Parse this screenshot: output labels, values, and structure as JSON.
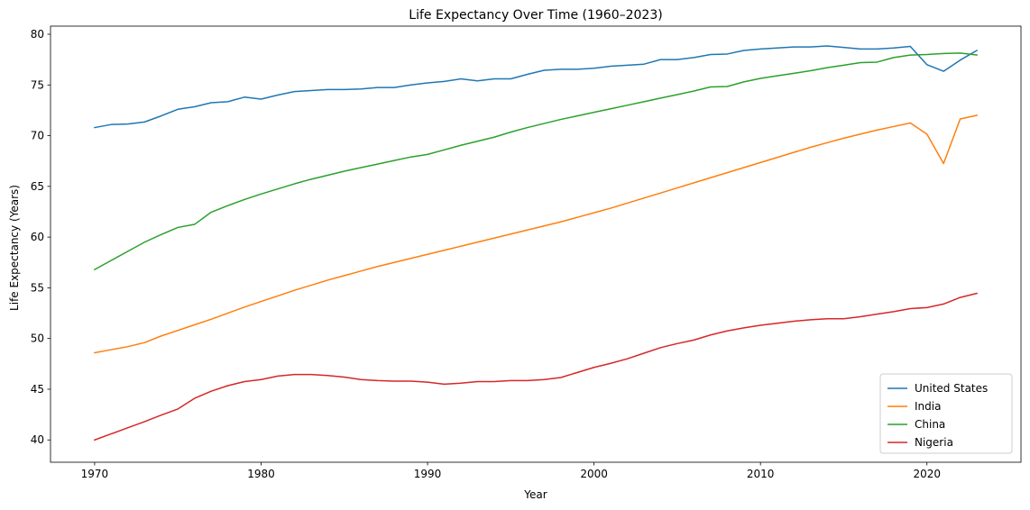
{
  "chart_data": {
    "type": "line",
    "title": "Life Expectancy Over Time (1960–2023)",
    "xlabel": "Year",
    "ylabel": "Life Expectancy (Years)",
    "xlim": [
      1967.35,
      2025.65
    ],
    "ylim": [
      37.8,
      80.8
    ],
    "xticks": [
      1970,
      1980,
      1990,
      2000,
      2010,
      2020
    ],
    "yticks": [
      40,
      45,
      50,
      55,
      60,
      65,
      70,
      75,
      80
    ],
    "grid": false,
    "legend_position": "lower-right",
    "x": [
      1970,
      1971,
      1972,
      1973,
      1974,
      1975,
      1976,
      1977,
      1978,
      1979,
      1980,
      1981,
      1982,
      1983,
      1984,
      1985,
      1986,
      1987,
      1988,
      1989,
      1990,
      1991,
      1992,
      1993,
      1994,
      1995,
      1996,
      1997,
      1998,
      1999,
      2000,
      2001,
      2002,
      2003,
      2004,
      2005,
      2006,
      2007,
      2008,
      2009,
      2010,
      2011,
      2012,
      2013,
      2014,
      2015,
      2016,
      2017,
      2018,
      2019,
      2020,
      2021,
      2022,
      2023
    ],
    "series": [
      {
        "name": "United States",
        "color": "#1f77b4",
        "values": [
          70.8,
          71.1,
          71.15,
          71.35,
          71.95,
          72.6,
          72.85,
          73.25,
          73.35,
          73.8,
          73.6,
          74.0,
          74.35,
          74.45,
          74.55,
          74.55,
          74.6,
          74.75,
          74.75,
          75.0,
          75.2,
          75.35,
          75.6,
          75.4,
          75.6,
          75.6,
          76.05,
          76.45,
          76.55,
          76.55,
          76.65,
          76.85,
          76.95,
          77.05,
          77.5,
          77.5,
          77.7,
          78.0,
          78.05,
          78.4,
          78.55,
          78.65,
          78.75,
          78.75,
          78.85,
          78.7,
          78.55,
          78.55,
          78.65,
          78.8,
          77.0,
          76.35,
          77.45,
          78.4
        ]
      },
      {
        "name": "India",
        "color": "#ff7f0e",
        "values": [
          48.6,
          48.9,
          49.2,
          49.6,
          50.25,
          50.8,
          51.35,
          51.9,
          52.5,
          53.1,
          53.65,
          54.2,
          54.75,
          55.25,
          55.75,
          56.2,
          56.65,
          57.1,
          57.5,
          57.9,
          58.3,
          58.7,
          59.1,
          59.5,
          59.9,
          60.3,
          60.7,
          61.1,
          61.5,
          61.95,
          62.4,
          62.85,
          63.35,
          63.85,
          64.35,
          64.85,
          65.35,
          65.85,
          66.35,
          66.85,
          67.35,
          67.85,
          68.35,
          68.85,
          69.3,
          69.75,
          70.15,
          70.55,
          70.9,
          71.25,
          70.15,
          67.25,
          71.65,
          72.0
        ]
      },
      {
        "name": "China",
        "color": "#2ca02c",
        "values": [
          56.8,
          57.7,
          58.6,
          59.5,
          60.25,
          60.95,
          61.25,
          62.45,
          63.1,
          63.7,
          64.25,
          64.75,
          65.25,
          65.7,
          66.1,
          66.5,
          66.85,
          67.2,
          67.55,
          67.9,
          68.15,
          68.6,
          69.05,
          69.45,
          69.85,
          70.35,
          70.8,
          71.2,
          71.6,
          71.95,
          72.3,
          72.65,
          73.0,
          73.35,
          73.7,
          74.05,
          74.4,
          74.8,
          74.85,
          75.3,
          75.65,
          75.9,
          76.15,
          76.4,
          76.7,
          76.95,
          77.2,
          77.25,
          77.7,
          77.95,
          78.0,
          78.1,
          78.15,
          77.95
        ]
      },
      {
        "name": "Nigeria",
        "color": "#d62728",
        "values": [
          40.0,
          40.6,
          41.2,
          41.8,
          42.45,
          43.05,
          44.1,
          44.8,
          45.35,
          45.75,
          45.95,
          46.3,
          46.45,
          46.45,
          46.35,
          46.2,
          45.95,
          45.85,
          45.8,
          45.8,
          45.7,
          45.5,
          45.6,
          45.75,
          45.75,
          45.85,
          45.85,
          45.95,
          46.15,
          46.65,
          47.15,
          47.55,
          48.0,
          48.55,
          49.1,
          49.5,
          49.85,
          50.35,
          50.75,
          51.05,
          51.3,
          51.5,
          51.7,
          51.85,
          51.95,
          51.95,
          52.15,
          52.4,
          52.65,
          52.95,
          53.05,
          53.4,
          54.05,
          54.45
        ]
      }
    ]
  }
}
